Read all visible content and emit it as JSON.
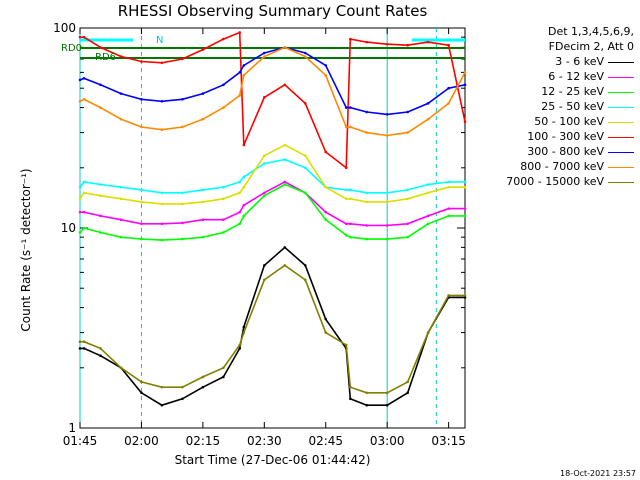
{
  "chart_data": {
    "type": "line",
    "title": "RHESSI Observing Summary Count Rates",
    "ylabel": "Count Rate (s⁻¹ detector⁻¹)",
    "xlabel": "Start Time (27-Dec-06 01:44:42)",
    "yscale": "log",
    "ylim": [
      1,
      100
    ],
    "xlim_minutes": [
      105,
      199
    ],
    "x_ticks": [
      "01:45",
      "02:00",
      "02:15",
      "02:30",
      "02:45",
      "03:00",
      "03:15"
    ],
    "y_ticks": [
      "1",
      "10",
      "100"
    ],
    "legend_header": [
      "Det 1,3,4,5,6,9,",
      "FDecim 2, Att 0"
    ],
    "legend_position": "top-right outside plot",
    "grid": false,
    "annotations": {
      "rd0": "RD0",
      "rd6": "RD6",
      "n": "N"
    },
    "footer": "18-Oct-2021 23:57",
    "x_minutes": [
      105,
      106,
      110,
      115,
      120,
      125,
      130,
      135,
      140,
      144,
      145,
      150,
      155,
      160,
      165,
      170,
      171,
      175,
      180,
      185,
      190,
      195,
      199
    ],
    "series": [
      {
        "name": "3 - 6 keV",
        "color": "#000000",
        "values": [
          2.5,
          2.5,
          2.3,
          2.0,
          1.5,
          1.3,
          1.4,
          1.6,
          1.8,
          2.5,
          3.2,
          6.5,
          8.0,
          6.5,
          3.5,
          2.5,
          1.4,
          1.3,
          1.3,
          1.5,
          3.0,
          4.5,
          4.5
        ]
      },
      {
        "name": "6 - 12 keV",
        "color": "#ff00ff",
        "values": [
          12,
          12,
          11.5,
          11,
          10.5,
          10.5,
          10.6,
          11,
          11,
          12,
          13,
          15,
          17,
          15,
          12,
          10.5,
          10.5,
          10.3,
          10.3,
          10.5,
          11.5,
          12.5,
          12.5
        ]
      },
      {
        "name": "12 - 25 keV",
        "color": "#00ff00",
        "values": [
          9.5,
          10,
          9.5,
          9.0,
          8.8,
          8.7,
          8.8,
          9.0,
          9.5,
          10.5,
          11.5,
          14.5,
          16.5,
          15,
          11,
          9.2,
          9.0,
          8.8,
          8.8,
          9.0,
          10.5,
          11.5,
          11.5
        ]
      },
      {
        "name": "25 - 50 keV",
        "color": "#00ffff",
        "values": [
          16,
          17,
          16.5,
          16,
          15.5,
          15,
          15,
          15.5,
          16,
          17,
          18,
          21,
          22,
          20,
          16,
          15.5,
          15.5,
          15,
          15,
          15.5,
          16.5,
          17,
          17
        ]
      },
      {
        "name": "50 - 100 keV",
        "color": "#dddd00",
        "values": [
          14,
          15,
          14.5,
          14,
          13.5,
          13.2,
          13.2,
          13.5,
          14,
          15,
          16,
          23,
          26,
          23,
          16,
          14,
          14,
          13.5,
          13.5,
          14,
          15,
          16,
          16
        ]
      },
      {
        "name": "100 - 300 keV",
        "color": "#ff0000",
        "values": [
          90,
          90,
          80,
          72,
          68,
          67,
          70,
          78,
          88,
          95,
          26,
          45,
          52,
          42,
          24,
          20,
          88,
          85,
          83,
          82,
          85,
          82,
          34
        ]
      },
      {
        "name": "300 - 800 keV",
        "color": "#0000ff",
        "values": [
          55,
          56,
          52,
          47,
          44,
          43,
          44,
          47,
          52,
          60,
          65,
          75,
          80,
          75,
          65,
          40,
          40,
          38,
          37,
          38,
          42,
          50,
          52
        ]
      },
      {
        "name": "800 - 7000 keV",
        "color": "#ff8800",
        "values": [
          43,
          44,
          40,
          35,
          32,
          31,
          32,
          35,
          40,
          46,
          58,
          72,
          80,
          72,
          58,
          32,
          32,
          30,
          29,
          30,
          35,
          42,
          60
        ]
      },
      {
        "name": "7000 - 15000 keV",
        "color": "#808000",
        "values": [
          2.7,
          2.7,
          2.5,
          2.0,
          1.7,
          1.6,
          1.6,
          1.8,
          2.0,
          2.6,
          3.0,
          5.5,
          6.5,
          5.5,
          3.0,
          2.6,
          1.6,
          1.5,
          1.5,
          1.7,
          3.0,
          4.6,
          4.6
        ]
      }
    ]
  }
}
